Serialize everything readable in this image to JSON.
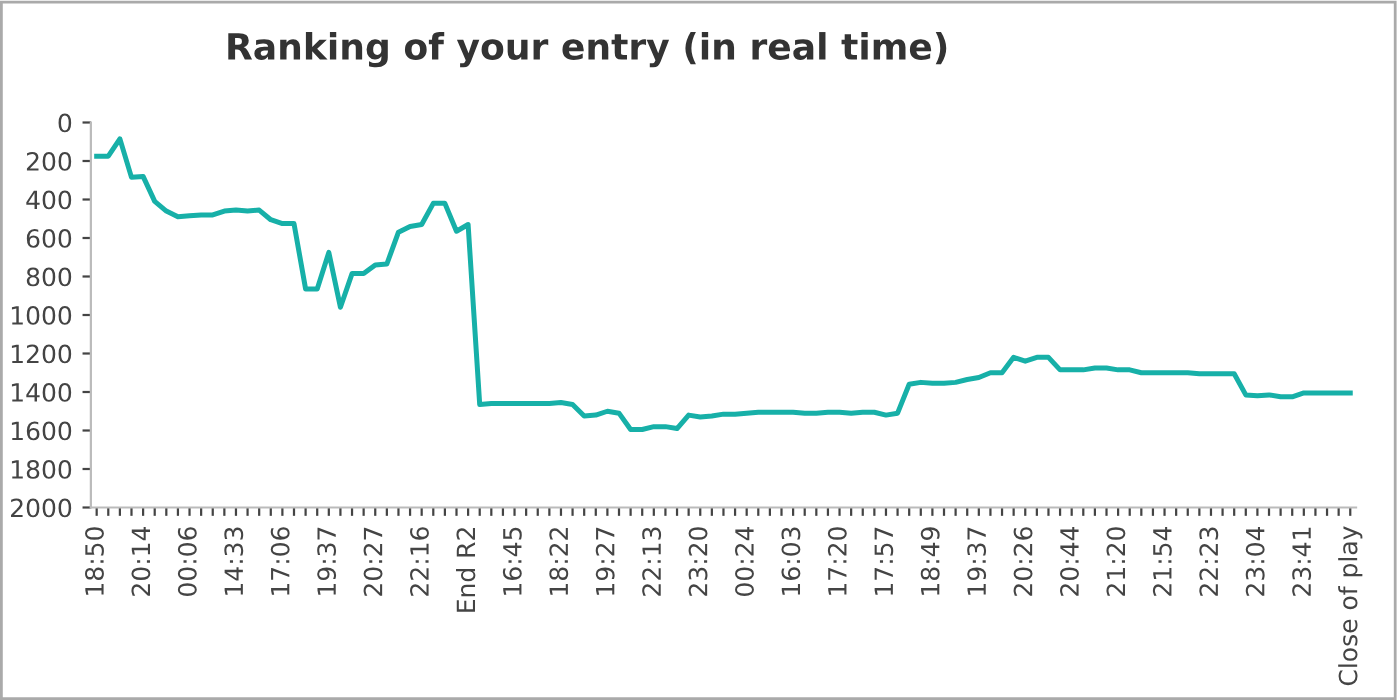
{
  "chart_data": {
    "type": "line",
    "title": "Ranking of your entry (in real time)",
    "categories": [
      "18:50",
      null,
      null,
      null,
      "20:14",
      null,
      null,
      null,
      "00:06",
      null,
      null,
      null,
      "14:33",
      null,
      null,
      null,
      "17:06",
      null,
      null,
      null,
      "19:37",
      null,
      null,
      null,
      "20:27",
      null,
      null,
      null,
      "22:16",
      null,
      null,
      null,
      "End R2",
      null,
      null,
      null,
      "16:45",
      null,
      null,
      null,
      "18:22",
      null,
      null,
      null,
      "19:27",
      null,
      null,
      null,
      "22:13",
      null,
      null,
      null,
      "23:20",
      null,
      null,
      null,
      "00:24",
      null,
      null,
      null,
      "16:03",
      null,
      null,
      null,
      "17:20",
      null,
      null,
      null,
      "17:57",
      null,
      null,
      null,
      "18:49",
      null,
      null,
      null,
      "19:37",
      null,
      null,
      null,
      "20:26",
      null,
      null,
      null,
      "20:44",
      null,
      null,
      null,
      "21:20",
      null,
      null,
      null,
      "21:54",
      null,
      null,
      null,
      "22:23",
      null,
      null,
      null,
      "23:04",
      null,
      null,
      null,
      "23:41",
      null,
      null,
      null,
      "Close of play"
    ],
    "series": [
      {
        "color": "#17b0a8",
        "values": [
          175,
          175,
          85,
          285,
          280,
          410,
          460,
          490,
          485,
          480,
          480,
          460,
          455,
          460,
          455,
          505,
          525,
          525,
          865,
          865,
          675,
          960,
          785,
          785,
          740,
          735,
          570,
          540,
          530,
          420,
          420,
          565,
          530,
          1465,
          1460,
          1460,
          1460,
          1460,
          1460,
          1460,
          1455,
          1465,
          1525,
          1520,
          1500,
          1510,
          1595,
          1595,
          1580,
          1580,
          1590,
          1520,
          1530,
          1525,
          1515,
          1515,
          1510,
          1505,
          1505,
          1505,
          1505,
          1510,
          1510,
          1505,
          1505,
          1510,
          1505,
          1505,
          1520,
          1510,
          1360,
          1350,
          1355,
          1355,
          1350,
          1335,
          1325,
          1300,
          1300,
          1220,
          1240,
          1220,
          1220,
          1285,
          1285,
          1285,
          1275,
          1275,
          1285,
          1285,
          1300,
          1300,
          1300,
          1300,
          1300,
          1305,
          1305,
          1305,
          1305,
          1415,
          1420,
          1415,
          1425,
          1425,
          1405,
          1405,
          1405,
          1405,
          1405
        ]
      }
    ],
    "ylim": [
      2000,
      0
    ],
    "yticks": [
      0,
      200,
      400,
      600,
      800,
      1000,
      1200,
      1400,
      1600,
      1800,
      2000
    ],
    "grid": false,
    "legend": false
  }
}
